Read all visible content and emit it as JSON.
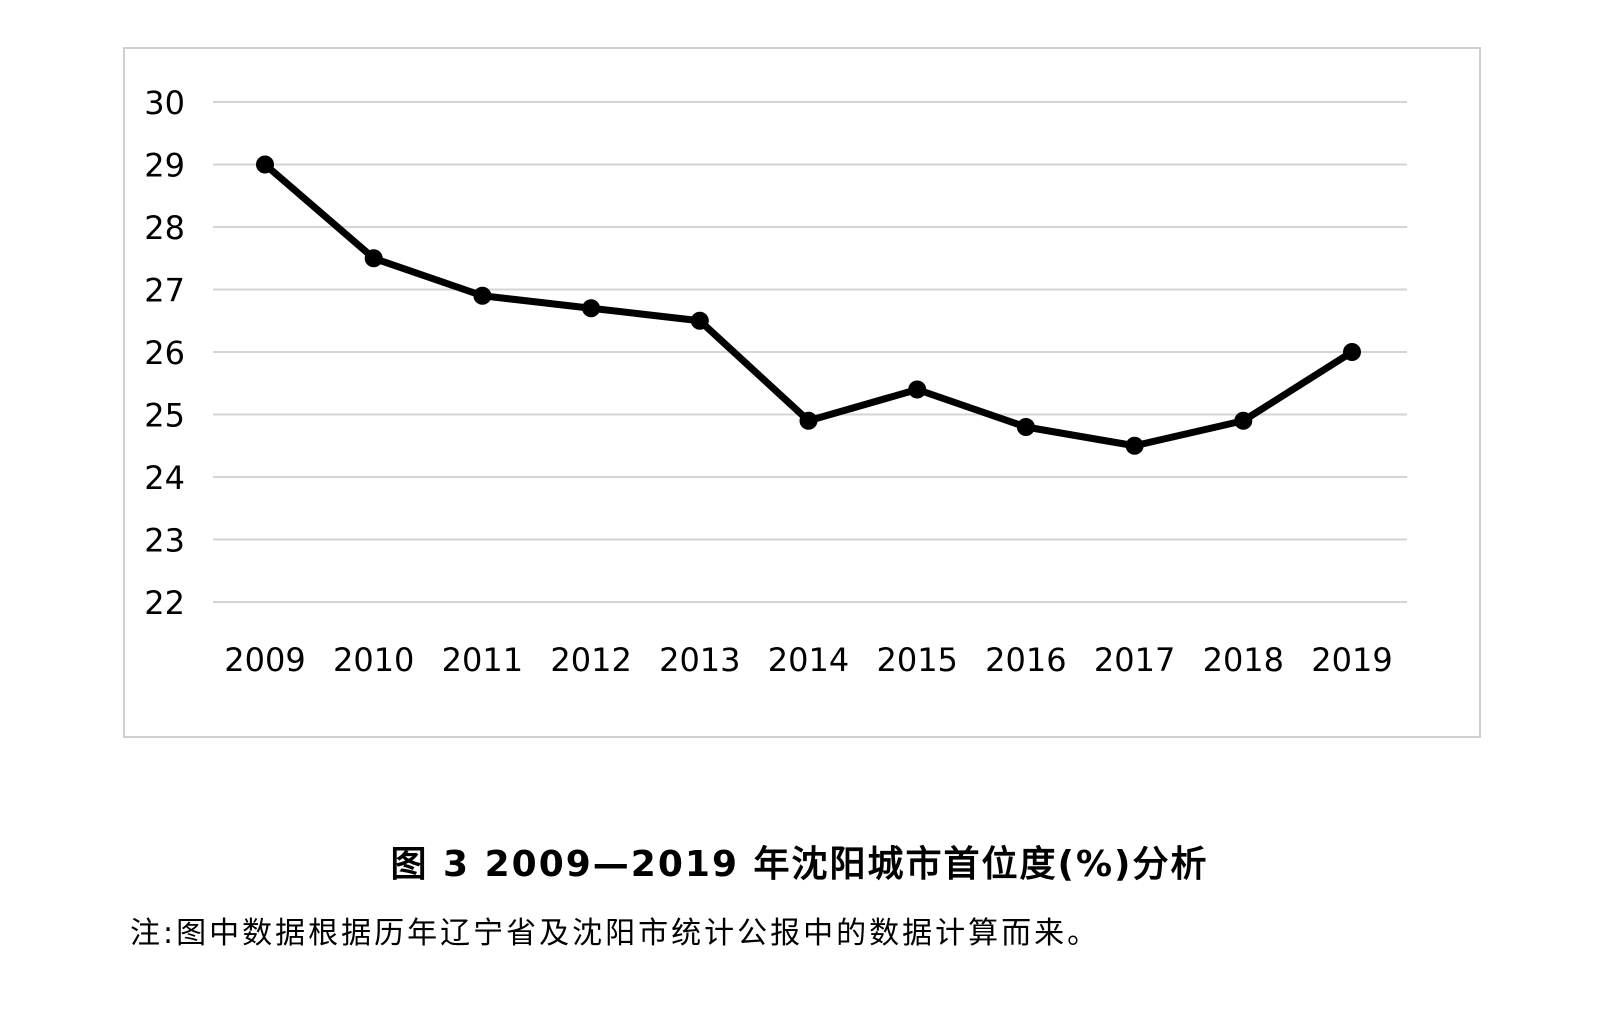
{
  "chart_data": {
    "type": "line",
    "categories": [
      "2009",
      "2010",
      "2011",
      "2012",
      "2013",
      "2014",
      "2015",
      "2016",
      "2017",
      "2018",
      "2019"
    ],
    "series": [
      {
        "values": [
          29.0,
          27.5,
          26.9,
          26.7,
          26.5,
          24.9,
          25.4,
          24.8,
          24.5,
          24.9,
          26.0
        ]
      }
    ],
    "yticks": [
      "22",
      "23",
      "24",
      "25",
      "26",
      "27",
      "28",
      "29",
      "30"
    ],
    "ylim": [
      22,
      30
    ],
    "grid": true,
    "line_color": "#000000",
    "grid_color": "#d4d4d4"
  },
  "caption": "图 3  2009—2019 年沈阳城市首位度(%)分析",
  "note": "注:图中数据根据历年辽宁省及沈阳市统计公报中的数据计算而来。"
}
